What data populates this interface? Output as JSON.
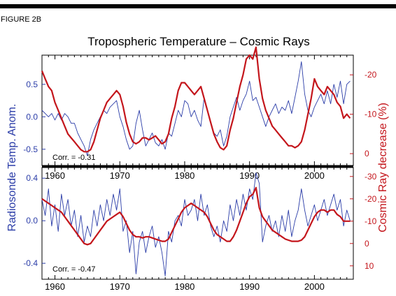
{
  "figure_label": "FIGURE 2B",
  "colors": {
    "blue": "#2b3da8",
    "red": "#c4161c",
    "axis": "#000000"
  },
  "chart_data": [
    {
      "type": "line",
      "panel": "top",
      "title": "Tropospheric Temperature – Cosmic Rays",
      "xlim": [
        1958,
        2006
      ],
      "x_ticks": [
        1960,
        1970,
        1980,
        1990,
        2000
      ],
      "left_axis": {
        "ylim": [
          -0.75,
          0.95
        ],
        "ticks": [
          "0.5",
          "0.0",
          "-0.5"
        ],
        "tick_values": [
          0.5,
          0.0,
          -0.5
        ]
      },
      "right_axis": {
        "ylim": [
          -25,
          3
        ],
        "inverted": true,
        "ticks": [
          "-20",
          "-10",
          "0"
        ],
        "tick_values": [
          -20,
          -10,
          0
        ]
      },
      "annotation": "Corr. = -0.31",
      "series": [
        {
          "axis": "left",
          "color": "#2b3da8",
          "x": [
            1958,
            1958.5,
            1959,
            1959.5,
            1960,
            1960.5,
            1961,
            1961.5,
            1962,
            1962.5,
            1963,
            1963.5,
            1964,
            1964.5,
            1965,
            1965.5,
            1966,
            1966.5,
            1967,
            1967.5,
            1968,
            1968.5,
            1969,
            1969.5,
            1970,
            1970.5,
            1971,
            1971.5,
            1972,
            1972.5,
            1973,
            1973.5,
            1974,
            1974.5,
            1975,
            1975.5,
            1976,
            1976.5,
            1977,
            1977.5,
            1978,
            1978.5,
            1979,
            1979.5,
            1980,
            1980.5,
            1981,
            1981.5,
            1982,
            1982.5,
            1983,
            1983.5,
            1984,
            1984.5,
            1985,
            1985.5,
            1986,
            1986.5,
            1987,
            1987.5,
            1988,
            1988.5,
            1989,
            1989.5,
            1990,
            1990.5,
            1991,
            1991.5,
            1992,
            1992.5,
            1993,
            1993.5,
            1994,
            1994.5,
            1995,
            1995.5,
            1996,
            1996.5,
            1997,
            1997.5,
            1998,
            1998.5,
            1999,
            1999.5,
            2000,
            2000.5,
            2001,
            2001.5,
            2002,
            2002.5,
            2003,
            2003.5,
            2004,
            2004.5,
            2005,
            2005.5
          ],
          "y": [
            0.1,
            0.05,
            0.0,
            0.05,
            -0.05,
            0.05,
            -0.05,
            0.05,
            0.0,
            -0.1,
            -0.1,
            -0.25,
            -0.35,
            -0.45,
            -0.6,
            -0.35,
            -0.2,
            -0.1,
            0.0,
            0.1,
            0.05,
            0.15,
            0.2,
            0.25,
            0.0,
            -0.15,
            -0.35,
            -0.5,
            -0.45,
            -0.1,
            0.1,
            -0.2,
            -0.45,
            -0.35,
            -0.25,
            -0.4,
            -0.45,
            -0.35,
            -0.5,
            -0.25,
            -0.3,
            -0.1,
            0.1,
            0.0,
            0.25,
            0.2,
            0.0,
            0.1,
            -0.05,
            -0.15,
            0.3,
            0.1,
            -0.1,
            -0.25,
            -0.3,
            -0.2,
            -0.45,
            -0.3,
            0.0,
            0.15,
            0.3,
            0.1,
            0.25,
            0.35,
            0.55,
            0.25,
            0.3,
            0.15,
            0.0,
            -0.15,
            0.0,
            0.1,
            0.2,
            0.05,
            0.15,
            0.1,
            0.25,
            0.05,
            0.3,
            0.55,
            0.85,
            0.35,
            0.1,
            0.0,
            0.15,
            0.25,
            0.35,
            0.2,
            0.4,
            0.2,
            0.5,
            0.3,
            0.55,
            0.2,
            0.5,
            0.55
          ]
        },
        {
          "axis": "right",
          "color": "#c4161c",
          "x": [
            1958,
            1958.5,
            1959,
            1959.5,
            1960,
            1960.5,
            1961,
            1961.5,
            1962,
            1962.5,
            1963,
            1963.5,
            1964,
            1964.5,
            1965,
            1965.5,
            1966,
            1966.5,
            1967,
            1967.5,
            1968,
            1968.5,
            1969,
            1969.5,
            1970,
            1970.5,
            1971,
            1971.5,
            1972,
            1972.5,
            1973,
            1973.5,
            1974,
            1974.5,
            1975,
            1975.5,
            1976,
            1976.5,
            1977,
            1977.5,
            1978,
            1978.5,
            1979,
            1979.5,
            1980,
            1980.5,
            1981,
            1981.5,
            1982,
            1982.5,
            1983,
            1983.5,
            1984,
            1984.5,
            1985,
            1985.5,
            1986,
            1986.5,
            1987,
            1987.5,
            1988,
            1988.5,
            1989,
            1989.5,
            1990,
            1990.5,
            1991,
            1991.5,
            1992,
            1992.5,
            1993,
            1993.5,
            1994,
            1994.5,
            1995,
            1995.5,
            1996,
            1996.5,
            1997,
            1997.5,
            1998,
            1998.5,
            1999,
            1999.5,
            2000,
            2000.5,
            2001,
            2001.5,
            2002,
            2002.5,
            2003,
            2003.5,
            2004,
            2004.5,
            2005,
            2005.5
          ],
          "y": [
            -21,
            -19,
            -17,
            -16,
            -13,
            -11,
            -9,
            -7,
            -5,
            -4,
            -3,
            -2,
            -1,
            -0.5,
            -0.5,
            -1,
            -3,
            -6,
            -9,
            -11,
            -13,
            -14,
            -15,
            -16,
            -15,
            -12,
            -8,
            -5,
            -3,
            -2.5,
            -3,
            -4,
            -4,
            -3.5,
            -4,
            -4.5,
            -3.5,
            -2.5,
            -3,
            -5,
            -9,
            -12,
            -16,
            -18,
            -18,
            -17,
            -16,
            -15,
            -16,
            -17,
            -14,
            -11,
            -8,
            -5,
            -3,
            -1.5,
            -1,
            -2,
            -6,
            -9,
            -13,
            -17,
            -20,
            -24,
            -25,
            -24,
            -27,
            -19,
            -14,
            -11,
            -9,
            -7,
            -6,
            -5,
            -4,
            -3,
            -2,
            -2,
            -1.5,
            -2,
            -3,
            -6,
            -10,
            -14,
            -19,
            -17,
            -16,
            -15,
            -17,
            -16,
            -15,
            -13,
            -12,
            -9,
            -10,
            -9
          ]
        }
      ]
    },
    {
      "type": "line",
      "panel": "bottom",
      "xlim": [
        1958,
        2006
      ],
      "x_ticks": [
        1960,
        1970,
        1980,
        1990,
        2000
      ],
      "left_axis": {
        "ylim": [
          -0.55,
          0.5
        ],
        "ticks": [
          "0.4",
          "0.0",
          "-0.4"
        ],
        "tick_values": [
          0.4,
          0.0,
          -0.4
        ]
      },
      "right_axis": {
        "ylim": [
          -34,
          16
        ],
        "inverted": true,
        "ticks": [
          "-30",
          "-20",
          "-10",
          "0",
          "10"
        ],
        "tick_values": [
          -30,
          -20,
          -10,
          0,
          10
        ]
      },
      "annotation": "Corr. = -0.47",
      "series": [
        {
          "axis": "left",
          "color": "#2b3da8",
          "x": [
            1958,
            1958.5,
            1959,
            1959.5,
            1960,
            1960.5,
            1961,
            1961.5,
            1962,
            1962.5,
            1963,
            1963.5,
            1964,
            1964.5,
            1965,
            1965.5,
            1966,
            1966.5,
            1967,
            1967.5,
            1968,
            1968.5,
            1969,
            1969.5,
            1970,
            1970.5,
            1971,
            1971.5,
            1972,
            1972.5,
            1973,
            1973.5,
            1974,
            1974.5,
            1975,
            1975.5,
            1976,
            1976.5,
            1977,
            1977.5,
            1978,
            1978.5,
            1979,
            1979.5,
            1980,
            1980.5,
            1981,
            1981.5,
            1982,
            1982.5,
            1983,
            1983.5,
            1984,
            1984.5,
            1985,
            1985.5,
            1986,
            1986.5,
            1987,
            1987.5,
            1988,
            1988.5,
            1989,
            1989.5,
            1990,
            1990.5,
            1991,
            1991.5,
            1992,
            1992.5,
            1993,
            1993.5,
            1994,
            1994.5,
            1995,
            1995.5,
            1996,
            1996.5,
            1997,
            1997.5,
            1998,
            1998.5,
            1999,
            1999.5,
            2000,
            2000.5,
            2001,
            2001.5,
            2002,
            2002.5,
            2003,
            2003.5,
            2004,
            2004.5,
            2005,
            2005.5
          ],
          "y": [
            0.2,
            0.05,
            0.3,
            -0.05,
            0.15,
            -0.1,
            0.25,
            0.05,
            0.2,
            -0.05,
            0.1,
            -0.15,
            0.05,
            -0.2,
            -0.05,
            -0.15,
            0.1,
            -0.05,
            0.15,
            0.0,
            0.2,
            0.05,
            0.25,
            0.1,
            0.3,
            -0.1,
            0.0,
            -0.3,
            -0.1,
            -0.5,
            -0.2,
            -0.1,
            -0.3,
            -0.15,
            -0.05,
            -0.25,
            -0.15,
            -0.3,
            -0.52,
            -0.1,
            -0.2,
            0.0,
            0.05,
            -0.05,
            0.2,
            0.05,
            0.1,
            0.2,
            0.0,
            0.25,
            0.05,
            0.15,
            -0.05,
            -0.15,
            -0.05,
            -0.2,
            0.0,
            -0.1,
            0.15,
            0.0,
            0.2,
            0.05,
            0.25,
            0.1,
            0.3,
            0.2,
            0.45,
            0.35,
            -0.2,
            -0.05,
            0.05,
            -0.1,
            0.0,
            -0.15,
            0.05,
            -0.1,
            0.1,
            -0.15,
            0.0,
            0.1,
            0.3,
            0.1,
            -0.05,
            0.05,
            0.15,
            0.0,
            0.1,
            0.2,
            0.05,
            0.15,
            0.25,
            0.1,
            0.2,
            -0.05,
            0.1,
            0.0
          ]
        },
        {
          "axis": "right",
          "color": "#c4161c",
          "x": [
            1958,
            1958.5,
            1959,
            1959.5,
            1960,
            1960.5,
            1961,
            1961.5,
            1962,
            1962.5,
            1963,
            1963.5,
            1964,
            1964.5,
            1965,
            1965.5,
            1966,
            1966.5,
            1967,
            1967.5,
            1968,
            1968.5,
            1969,
            1969.5,
            1970,
            1970.5,
            1971,
            1971.5,
            1972,
            1972.5,
            1973,
            1973.5,
            1974,
            1974.5,
            1975,
            1975.5,
            1976,
            1976.5,
            1977,
            1977.5,
            1978,
            1978.5,
            1979,
            1979.5,
            1980,
            1980.5,
            1981,
            1981.5,
            1982,
            1982.5,
            1983,
            1983.5,
            1984,
            1984.5,
            1985,
            1985.5,
            1986,
            1986.5,
            1987,
            1987.5,
            1988,
            1988.5,
            1989,
            1989.5,
            1990,
            1990.5,
            1991,
            1991.5,
            1992,
            1992.5,
            1993,
            1993.5,
            1994,
            1994.5,
            1995,
            1995.5,
            1996,
            1996.5,
            1997,
            1997.5,
            1998,
            1998.5,
            1999,
            1999.5,
            2000,
            2000.5,
            2001,
            2001.5,
            2002,
            2002.5,
            2003,
            2003.5,
            2004,
            2004.5,
            2005,
            2005.5
          ],
          "y": [
            -20,
            -19,
            -18,
            -17,
            -16,
            -15,
            -14,
            -12,
            -10,
            -8,
            -6,
            -4,
            -2,
            0,
            0.5,
            0,
            -2,
            -4,
            -6,
            -8,
            -10,
            -11,
            -12,
            -13,
            -14,
            -12,
            -9,
            -6,
            -4,
            -3,
            -3,
            -2.5,
            -3,
            -3,
            -2.5,
            -2,
            -1.5,
            -1,
            -1,
            -2,
            -5,
            -8,
            -11,
            -14,
            -16,
            -17,
            -18,
            -17,
            -16,
            -15,
            -14,
            -12,
            -9,
            -6,
            -4,
            -3,
            -2,
            -1,
            -1,
            -3,
            -6,
            -10,
            -14,
            -18,
            -21,
            -22,
            -25,
            -16,
            -12,
            -10,
            -8,
            -6,
            -5,
            -4,
            -3,
            -2,
            -1.5,
            -1,
            -1,
            -1,
            -1.5,
            -3,
            -6,
            -9,
            -12,
            -14,
            -15,
            -15,
            -14,
            -15,
            -15,
            -13,
            -12,
            -10,
            -10,
            -10
          ]
        }
      ]
    }
  ]
}
